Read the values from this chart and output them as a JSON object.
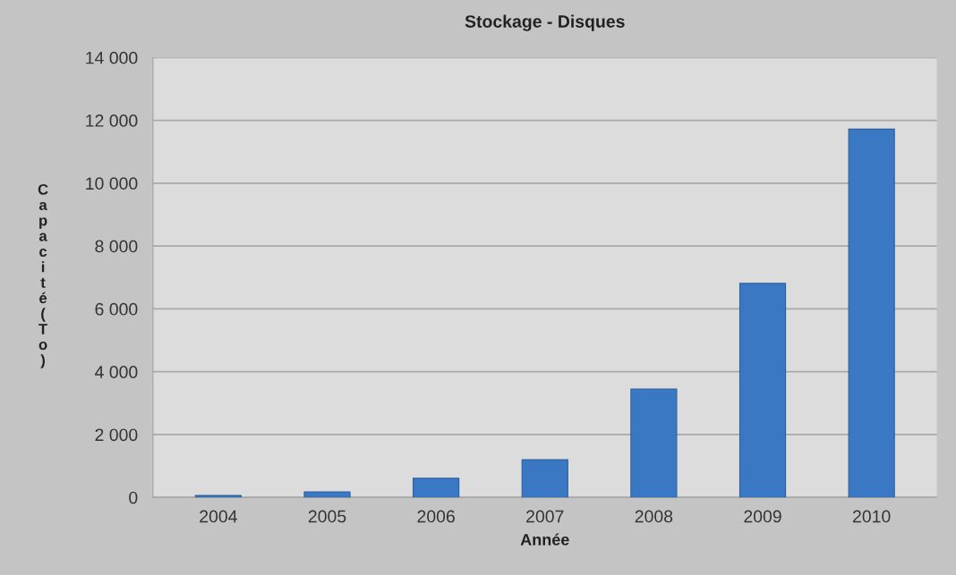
{
  "chart_data": {
    "type": "bar",
    "title": "Stockage - Disques",
    "xlabel": "Année",
    "ylabel": "Capacité (To)",
    "categories": [
      "2004",
      "2005",
      "2006",
      "2007",
      "2008",
      "2009",
      "2010"
    ],
    "values": [
      60,
      175,
      610,
      1200,
      3450,
      6810,
      11720
    ],
    "color": "#3a78c4",
    "ylim": [
      0,
      14000
    ],
    "yticks": [
      {
        "value": 0,
        "label": "0"
      },
      {
        "value": 2000,
        "label": "2 000"
      },
      {
        "value": 4000,
        "label": "4 000"
      },
      {
        "value": 6000,
        "label": "6 000"
      },
      {
        "value": 8000,
        "label": "8 000"
      },
      {
        "value": 10000,
        "label": "10 000"
      },
      {
        "value": 12000,
        "label": "12 000"
      },
      {
        "value": 14000,
        "label": "14 000"
      }
    ],
    "grid": "y"
  }
}
